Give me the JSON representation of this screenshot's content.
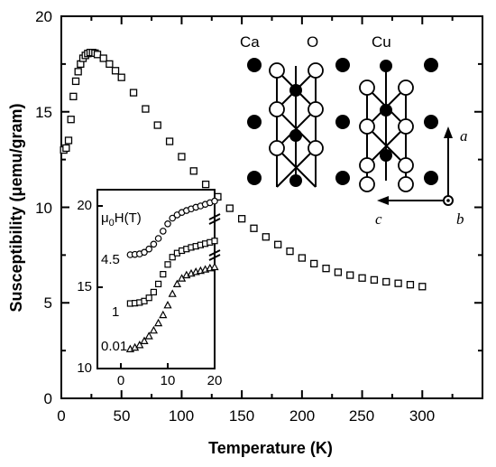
{
  "chart_data": {
    "type": "scatter",
    "xlabel": "Temperature (K)",
    "ylabel": "Susceptibility (μemu/gram)",
    "xlim": [
      0,
      350
    ],
    "ylim": [
      0,
      20
    ],
    "xticks": [
      "0",
      "50",
      "100",
      "150",
      "200",
      "250",
      "300"
    ],
    "yticks": [
      "0",
      "5",
      "10",
      "15",
      "20"
    ],
    "grid": false,
    "marker": "open-square",
    "series": [
      {
        "x": [
          2,
          4,
          6,
          8,
          10,
          12,
          14,
          16,
          18,
          20,
          22,
          24,
          26,
          28,
          30,
          35,
          40,
          45,
          50,
          60,
          70,
          80,
          90,
          100,
          110,
          120,
          130,
          140,
          150,
          160,
          170,
          180,
          190,
          200,
          210,
          220,
          230,
          240,
          250,
          260,
          270,
          280,
          290,
          300
        ],
        "y": [
          13.0,
          13.1,
          13.5,
          14.6,
          15.8,
          16.6,
          17.1,
          17.5,
          17.8,
          17.95,
          18.05,
          18.1,
          18.1,
          18.07,
          18.0,
          17.8,
          17.5,
          17.15,
          16.8,
          16.0,
          15.15,
          14.3,
          13.45,
          12.65,
          11.9,
          11.2,
          10.55,
          9.95,
          9.4,
          8.9,
          8.45,
          8.05,
          7.7,
          7.35,
          7.05,
          6.8,
          6.6,
          6.45,
          6.3,
          6.2,
          6.1,
          6.02,
          5.95,
          5.85
        ]
      }
    ],
    "inset": {
      "xlabel": "",
      "ylabel": "",
      "title": "μ0H(T)",
      "xlim": [
        -5,
        20
      ],
      "ylim": [
        10,
        21
      ],
      "xticks": [
        "0",
        "10",
        "20"
      ],
      "yticks": [
        "10",
        "15",
        "20"
      ],
      "series": [
        {
          "name": "4.5",
          "marker": "open-circle",
          "x": [
            2,
            3,
            4,
            5,
            6,
            7,
            8,
            9,
            10,
            11,
            12,
            13,
            14,
            15,
            16,
            17,
            18,
            19,
            20
          ],
          "y": [
            17.0,
            17.02,
            17.05,
            17.15,
            17.35,
            17.65,
            18.0,
            18.45,
            18.9,
            19.25,
            19.45,
            19.6,
            19.72,
            19.82,
            19.92,
            20.0,
            20.1,
            20.2,
            20.3
          ]
        },
        {
          "name": "1",
          "marker": "open-square",
          "x": [
            2,
            3,
            4,
            5,
            6,
            7,
            8,
            9,
            10,
            11,
            12,
            13,
            14,
            15,
            16,
            17,
            18,
            19,
            20
          ],
          "y": [
            14.0,
            14.02,
            14.06,
            14.15,
            14.35,
            14.7,
            15.2,
            15.8,
            16.4,
            16.85,
            17.1,
            17.25,
            17.35,
            17.45,
            17.52,
            17.6,
            17.68,
            17.76,
            17.85
          ]
        },
        {
          "name": "0.01",
          "marker": "open-triangle",
          "x": [
            2,
            3,
            4,
            5,
            6,
            7,
            8,
            9,
            10,
            11,
            12,
            13,
            14,
            15,
            16,
            17,
            18,
            19,
            20
          ],
          "y": [
            11.2,
            11.3,
            11.45,
            11.7,
            12.0,
            12.35,
            12.8,
            13.3,
            13.9,
            14.6,
            15.2,
            15.55,
            15.75,
            15.85,
            15.95,
            16.02,
            16.1,
            16.18,
            16.25
          ]
        }
      ],
      "field_labels": [
        "4.5",
        "1",
        "0.01"
      ]
    },
    "structure": {
      "atom_labels": [
        "Ca",
        "O",
        "Cu"
      ],
      "axis_labels": [
        "a",
        "c",
        "b"
      ]
    }
  }
}
